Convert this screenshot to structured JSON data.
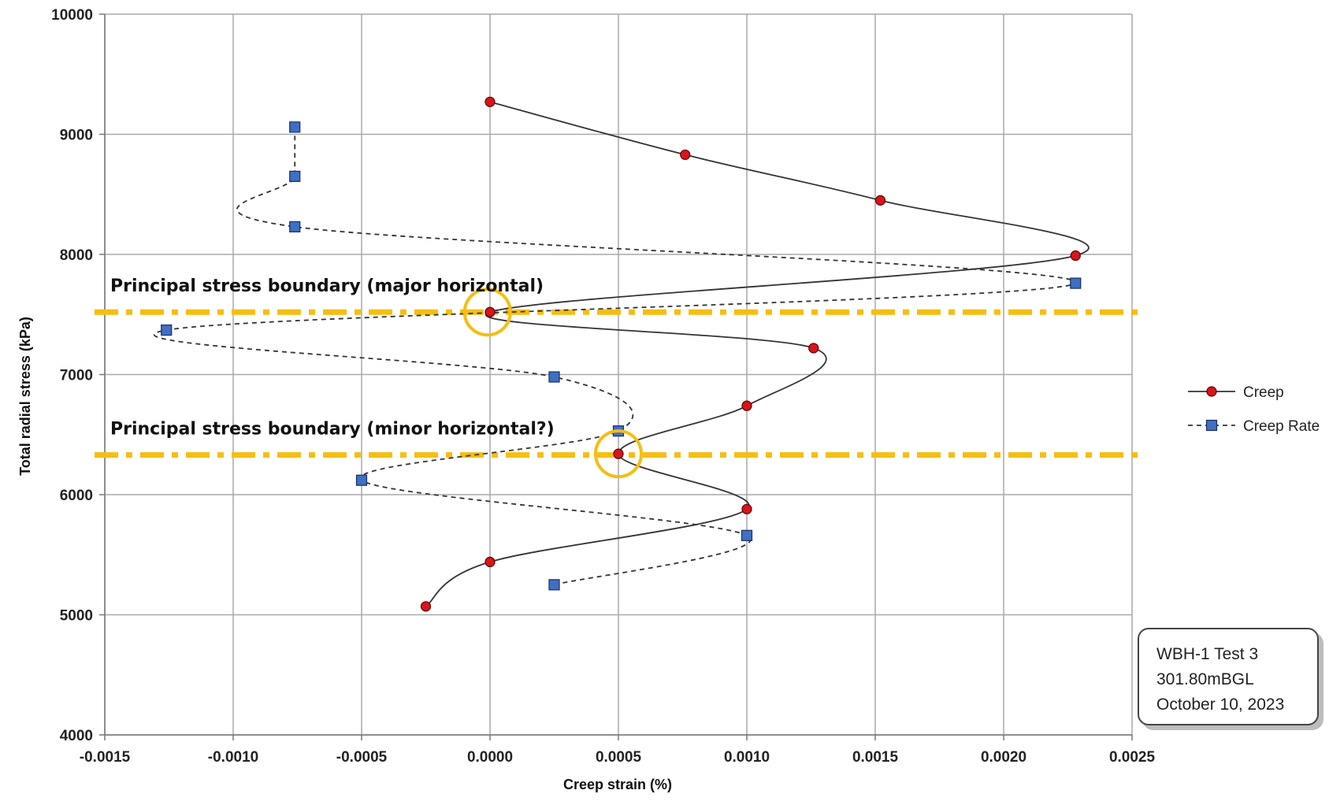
{
  "chart_data": {
    "type": "line",
    "title": "",
    "xlabel": "Creep strain (%)",
    "ylabel": "Total radial stress (kPa)",
    "xlim": [
      -0.0015,
      0.0025
    ],
    "ylim": [
      4000,
      10000
    ],
    "x_ticks": [
      "-0.0015",
      "-0.0010",
      "-0.0005",
      "0.0000",
      "0.0005",
      "0.0010",
      "0.0015",
      "0.0020",
      "0.0025"
    ],
    "y_ticks": [
      "4000",
      "5000",
      "6000",
      "7000",
      "8000",
      "9000",
      "10000"
    ],
    "grid": true,
    "legend_position": "right",
    "series": [
      {
        "name": "Creep",
        "style": "solid",
        "marker": "circle",
        "color": "#d9141b",
        "points": [
          [
            0.0,
            9270
          ],
          [
            0.00076,
            8830
          ],
          [
            0.00152,
            8450
          ],
          [
            0.00228,
            7990
          ],
          [
            0.0,
            7520
          ],
          [
            0.00126,
            7220
          ],
          [
            0.001,
            6740
          ],
          [
            0.0005,
            6340
          ],
          [
            0.001,
            5880
          ],
          [
            0.0,
            5440
          ],
          [
            -0.00025,
            5070
          ]
        ]
      },
      {
        "name": "Creep Rate",
        "style": "dashed",
        "marker": "square",
        "color": "#3f6fc6",
        "points": [
          [
            -0.00076,
            9060
          ],
          [
            -0.00076,
            8650
          ],
          [
            -0.00076,
            8230
          ],
          [
            0.00228,
            7760
          ],
          [
            -0.00126,
            7370
          ],
          [
            0.00025,
            6980
          ],
          [
            0.0005,
            6530
          ],
          [
            -0.0005,
            6120
          ],
          [
            0.001,
            5660
          ],
          [
            0.00025,
            5250
          ]
        ]
      }
    ],
    "reference_lines": [
      {
        "label": "Principal stress boundary (major horizontal)",
        "y": 7520,
        "color": "#f5be10"
      },
      {
        "label": "Principal stress boundary (minor horizontal?)",
        "y": 6330,
        "color": "#f5be10"
      }
    ],
    "highlight_circles": [
      {
        "x": -1e-05,
        "y": 7520
      },
      {
        "x": 0.0005,
        "y": 6340
      }
    ]
  },
  "info_box": {
    "line1": "WBH-1 Test 3",
    "line2": "301.80mBGL",
    "line3": "October 10, 2023"
  }
}
